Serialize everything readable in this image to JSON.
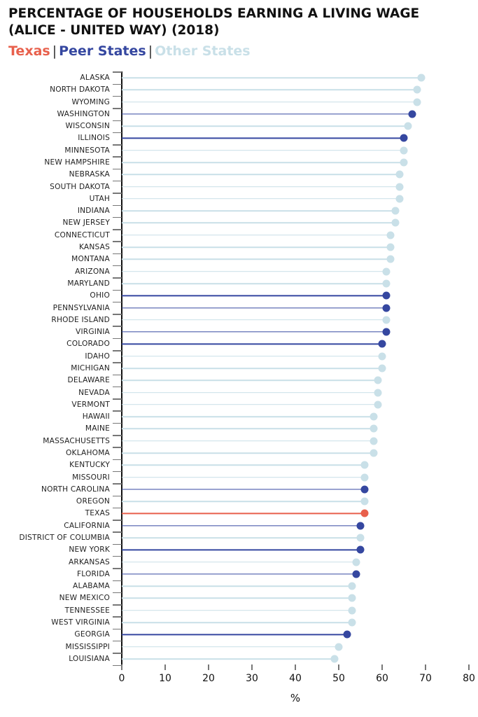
{
  "title": "PERCENTAGE OF HOUSEHOLDS EARNING A LIVING WAGE (ALICE - UNITED WAY) (2018)",
  "legend": {
    "items": [
      {
        "label": "Texas",
        "color": "#e8604c"
      },
      {
        "label": "Peer States",
        "color": "#3547a0"
      },
      {
        "label": "Other States",
        "color": "#c9e0e8"
      }
    ],
    "separator": "|"
  },
  "colors": {
    "texas": "#e8604c",
    "peer": "#3547a0",
    "other": "#c9e0e8"
  },
  "chart_data": {
    "type": "lollipop",
    "title": "PERCENTAGE OF HOUSEHOLDS EARNING A LIVING WAGE (ALICE - UNITED WAY) (2018)",
    "xlabel": "%",
    "ylabel": "",
    "xlim": [
      0,
      80
    ],
    "xticks": [
      0,
      10,
      20,
      30,
      40,
      50,
      60,
      70,
      80
    ],
    "grid": false,
    "legend_position": "top-left (colored text)",
    "categories": [
      "ALASKA",
      "NORTH DAKOTA",
      "WYOMING",
      "WASHINGTON",
      "WISCONSIN",
      "ILLINOIS",
      "MINNESOTA",
      "NEW HAMPSHIRE",
      "NEBRASKA",
      "SOUTH DAKOTA",
      "UTAH",
      "INDIANA",
      "NEW JERSEY",
      "CONNECTICUT",
      "KANSAS",
      "MONTANA",
      "ARIZONA",
      "MARYLAND",
      "OHIO",
      "PENNSYLVANIA",
      "RHODE ISLAND",
      "VIRGINIA",
      "COLORADO",
      "IDAHO",
      "MICHIGAN",
      "DELAWARE",
      "NEVADA",
      "VERMONT",
      "HAWAII",
      "MAINE",
      "MASSACHUSETTS",
      "OKLAHOMA",
      "KENTUCKY",
      "MISSOURI",
      "NORTH CAROLINA",
      "OREGON",
      "TEXAS",
      "CALIFORNIA",
      "DISTRICT OF COLUMBIA",
      "NEW YORK",
      "ARKANSAS",
      "FLORIDA",
      "ALABAMA",
      "NEW MEXICO",
      "TENNESSEE",
      "WEST VIRGINIA",
      "GEORGIA",
      "MISSISSIPPI",
      "LOUISIANA"
    ],
    "values": [
      69,
      68,
      68,
      67,
      66,
      65,
      65,
      65,
      64,
      64,
      64,
      63,
      63,
      62,
      62,
      62,
      61,
      61,
      61,
      61,
      61,
      61,
      60,
      60,
      60,
      59,
      59,
      59,
      58,
      58,
      58,
      58,
      56,
      56,
      56,
      56,
      56,
      55,
      55,
      55,
      54,
      54,
      53,
      53,
      53,
      53,
      52,
      50,
      49
    ],
    "groups": [
      "other",
      "other",
      "other",
      "peer",
      "other",
      "peer",
      "other",
      "other",
      "other",
      "other",
      "other",
      "other",
      "other",
      "other",
      "other",
      "other",
      "other",
      "other",
      "peer",
      "peer",
      "other",
      "peer",
      "peer",
      "other",
      "other",
      "other",
      "other",
      "other",
      "other",
      "other",
      "other",
      "other",
      "other",
      "other",
      "peer",
      "other",
      "texas",
      "peer",
      "other",
      "peer",
      "other",
      "peer",
      "other",
      "other",
      "other",
      "other",
      "peer",
      "other",
      "other"
    ],
    "series": [
      {
        "name": "Texas",
        "color": "#e8604c"
      },
      {
        "name": "Peer States",
        "color": "#3547a0"
      },
      {
        "name": "Other States",
        "color": "#c9e0e8"
      }
    ]
  }
}
